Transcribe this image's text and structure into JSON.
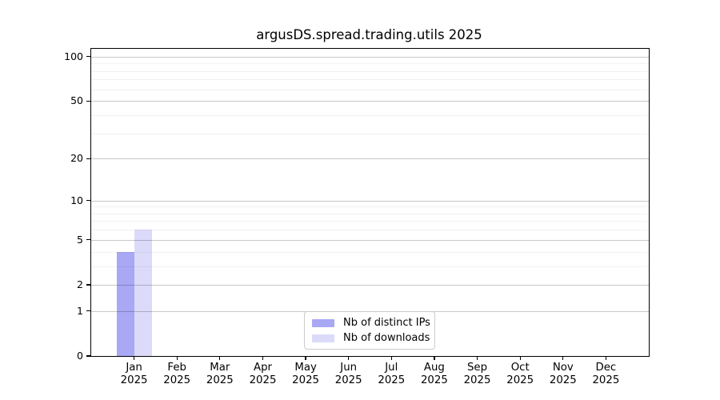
{
  "chart_data": {
    "type": "bar",
    "title": "argusDS.spread.trading.utils 2025",
    "x_tick_labels_line1": [
      "Jan",
      "Feb",
      "Mar",
      "Apr",
      "May",
      "Jun",
      "Jul",
      "Aug",
      "Sep",
      "Oct",
      "Nov",
      "Dec"
    ],
    "x_tick_labels_line2": [
      "2025",
      "2025",
      "2025",
      "2025",
      "2025",
      "2025",
      "2025",
      "2025",
      "2025",
      "2025",
      "2025",
      "2025"
    ],
    "series": [
      {
        "name": "Nb of distinct IPs",
        "color": "#a8a8f4",
        "values": [
          4,
          0,
          0,
          0,
          0,
          0,
          0,
          0,
          0,
          0,
          0,
          0
        ]
      },
      {
        "name": "Nb of downloads",
        "color": "#dbdbf9",
        "values": [
          6,
          0,
          0,
          0,
          0,
          0,
          0,
          0,
          0,
          0,
          0,
          0
        ]
      }
    ],
    "yscale": "log1p",
    "ylim": [
      0,
      113
    ],
    "yticks_major": [
      0,
      1,
      2,
      5,
      10,
      20,
      50,
      100
    ],
    "yticks_minor": [
      3,
      4,
      6,
      7,
      8,
      9,
      30,
      40,
      60,
      70,
      80,
      90
    ],
    "grid": true,
    "legend_position": "lower center",
    "xlabel": "",
    "ylabel": ""
  }
}
